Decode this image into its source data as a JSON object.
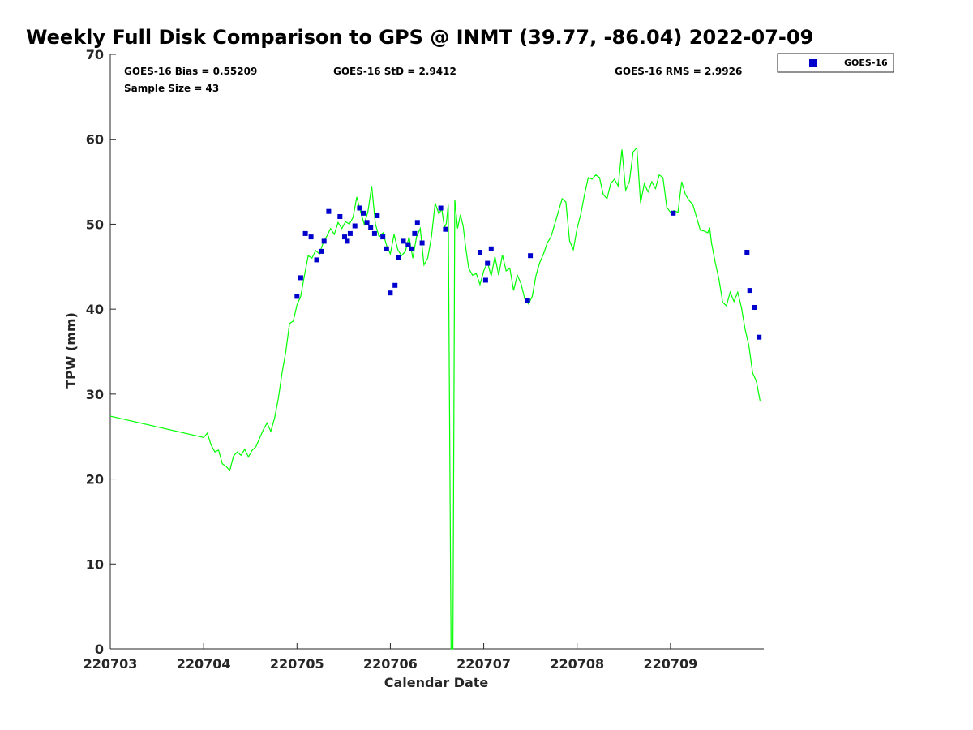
{
  "chart_data": {
    "type": "line+scatter",
    "title": "Weekly Full Disk Comparison to GPS @ INMT (39.77, -86.04) 2022-07-09",
    "xlabel": "Calendar Date",
    "ylabel": "TPW (mm)",
    "xlim": [
      0,
      7
    ],
    "ylim": [
      0,
      70
    ],
    "x_tick_values": [
      0,
      1,
      2,
      3,
      4,
      5,
      6
    ],
    "x_tick_labels": [
      "220703",
      "220704",
      "220705",
      "220706",
      "220707",
      "220708",
      "220709"
    ],
    "y_ticks": [
      0,
      10,
      20,
      30,
      40,
      50,
      60,
      70
    ],
    "stats": {
      "bias": "GOES-16 Bias = 0.55209",
      "std": "GOES-16 StD = 2.9412",
      "rms": "GOES-16 RMS = 2.9926",
      "sample": "Sample Size = 43"
    },
    "legend": {
      "label": "GOES-16",
      "position": "top-right (outside)"
    },
    "series": [
      {
        "name": "GPS",
        "kind": "line",
        "color": "#00ff00",
        "points": [
          [
            0.0,
            27.4
          ],
          [
            1.0,
            24.9
          ],
          [
            1.04,
            25.4
          ],
          [
            1.08,
            24.0
          ],
          [
            1.12,
            23.2
          ],
          [
            1.16,
            23.4
          ],
          [
            1.2,
            21.8
          ],
          [
            1.24,
            21.5
          ],
          [
            1.28,
            21.0
          ],
          [
            1.32,
            22.7
          ],
          [
            1.36,
            23.2
          ],
          [
            1.4,
            22.8
          ],
          [
            1.44,
            23.5
          ],
          [
            1.48,
            22.6
          ],
          [
            1.52,
            23.4
          ],
          [
            1.56,
            23.8
          ],
          [
            1.6,
            24.8
          ],
          [
            1.64,
            25.8
          ],
          [
            1.68,
            26.6
          ],
          [
            1.72,
            25.6
          ],
          [
            1.76,
            27.2
          ],
          [
            1.8,
            29.5
          ],
          [
            1.84,
            32.5
          ],
          [
            1.88,
            35.0
          ],
          [
            1.92,
            38.3
          ],
          [
            1.96,
            38.6
          ],
          [
            2.0,
            40.5
          ],
          [
            2.04,
            41.5
          ],
          [
            2.08,
            44.0
          ],
          [
            2.12,
            46.3
          ],
          [
            2.16,
            46.0
          ],
          [
            2.2,
            46.9
          ],
          [
            2.24,
            46.5
          ],
          [
            2.28,
            47.8
          ],
          [
            2.32,
            48.6
          ],
          [
            2.36,
            49.5
          ],
          [
            2.4,
            48.8
          ],
          [
            2.44,
            50.2
          ],
          [
            2.48,
            49.5
          ],
          [
            2.52,
            50.3
          ],
          [
            2.56,
            50.0
          ],
          [
            2.6,
            50.8
          ],
          [
            2.64,
            53.2
          ],
          [
            2.68,
            51.5
          ],
          [
            2.72,
            50.0
          ],
          [
            2.76,
            51.5
          ],
          [
            2.8,
            54.5
          ],
          [
            2.84,
            50.0
          ],
          [
            2.88,
            48.5
          ],
          [
            2.92,
            49.0
          ],
          [
            2.96,
            47.5
          ],
          [
            3.0,
            46.5
          ],
          [
            3.04,
            48.8
          ],
          [
            3.08,
            47.0
          ],
          [
            3.12,
            46.3
          ],
          [
            3.16,
            46.8
          ],
          [
            3.2,
            48.5
          ],
          [
            3.24,
            46.0
          ],
          [
            3.28,
            48.5
          ],
          [
            3.32,
            49.5
          ],
          [
            3.36,
            45.2
          ],
          [
            3.4,
            46.0
          ],
          [
            3.44,
            48.5
          ],
          [
            3.48,
            52.5
          ],
          [
            3.52,
            51.2
          ],
          [
            3.55,
            51.8
          ],
          [
            3.58,
            49.6
          ],
          [
            3.6,
            50.1
          ],
          [
            3.62,
            52.3
          ],
          [
            3.65,
            0.0
          ],
          [
            3.67,
            0.0
          ],
          [
            3.69,
            52.9
          ],
          [
            3.72,
            49.5
          ],
          [
            3.75,
            51.1
          ],
          [
            3.78,
            49.8
          ],
          [
            3.81,
            47.0
          ],
          [
            3.84,
            44.8
          ],
          [
            3.88,
            44.0
          ],
          [
            3.92,
            44.2
          ],
          [
            3.96,
            42.9
          ],
          [
            4.0,
            44.5
          ],
          [
            4.04,
            45.5
          ],
          [
            4.08,
            43.9
          ],
          [
            4.12,
            46.2
          ],
          [
            4.16,
            44.0
          ],
          [
            4.2,
            46.4
          ],
          [
            4.24,
            44.5
          ],
          [
            4.28,
            44.8
          ],
          [
            4.32,
            42.2
          ],
          [
            4.36,
            44.0
          ],
          [
            4.4,
            43.0
          ],
          [
            4.44,
            41.2
          ],
          [
            4.48,
            40.6
          ],
          [
            4.52,
            41.5
          ],
          [
            4.56,
            44.0
          ],
          [
            4.6,
            45.5
          ],
          [
            4.64,
            46.5
          ],
          [
            4.68,
            47.8
          ],
          [
            4.72,
            48.5
          ],
          [
            4.76,
            50.0
          ],
          [
            4.8,
            51.5
          ],
          [
            4.84,
            53.0
          ],
          [
            4.88,
            52.6
          ],
          [
            4.92,
            48.0
          ],
          [
            4.96,
            47.0
          ],
          [
            5.0,
            49.5
          ],
          [
            5.04,
            51.2
          ],
          [
            5.08,
            53.5
          ],
          [
            5.12,
            55.5
          ],
          [
            5.16,
            55.3
          ],
          [
            5.2,
            55.8
          ],
          [
            5.24,
            55.5
          ],
          [
            5.28,
            53.5
          ],
          [
            5.32,
            53.0
          ],
          [
            5.36,
            54.8
          ],
          [
            5.4,
            55.3
          ],
          [
            5.44,
            54.5
          ],
          [
            5.48,
            58.8
          ],
          [
            5.52,
            54.0
          ],
          [
            5.56,
            55.0
          ],
          [
            5.6,
            58.5
          ],
          [
            5.64,
            59.0
          ],
          [
            5.68,
            52.5
          ],
          [
            5.72,
            54.8
          ],
          [
            5.76,
            53.8
          ],
          [
            5.8,
            55.0
          ],
          [
            5.84,
            54.2
          ],
          [
            5.88,
            55.8
          ],
          [
            5.92,
            55.5
          ],
          [
            5.96,
            52.0
          ],
          [
            6.0,
            51.4
          ],
          [
            6.04,
            51.6
          ],
          [
            6.08,
            51.4
          ],
          [
            6.12,
            55.0
          ],
          [
            6.16,
            53.5
          ],
          [
            6.2,
            52.8
          ],
          [
            6.24,
            52.3
          ],
          [
            6.28,
            50.8
          ],
          [
            6.32,
            49.3
          ],
          [
            6.36,
            49.2
          ],
          [
            6.4,
            49.0
          ],
          [
            6.42,
            49.6
          ],
          [
            6.44,
            47.8
          ],
          [
            6.48,
            45.5
          ],
          [
            6.52,
            43.5
          ],
          [
            6.56,
            40.8
          ],
          [
            6.6,
            40.4
          ],
          [
            6.64,
            42.0
          ],
          [
            6.68,
            40.9
          ],
          [
            6.72,
            42.0
          ],
          [
            6.76,
            40.2
          ],
          [
            6.8,
            37.6
          ],
          [
            6.84,
            35.7
          ],
          [
            6.88,
            32.5
          ],
          [
            6.92,
            31.5
          ],
          [
            6.96,
            29.2
          ]
        ]
      },
      {
        "name": "GOES-16",
        "kind": "scatter",
        "color": "#0000cc",
        "points": [
          [
            2.0,
            41.5
          ],
          [
            2.04,
            43.7
          ],
          [
            2.09,
            48.9
          ],
          [
            2.15,
            48.5
          ],
          [
            2.21,
            45.8
          ],
          [
            2.26,
            46.8
          ],
          [
            2.29,
            48.0
          ],
          [
            2.34,
            51.5
          ],
          [
            2.46,
            50.9
          ],
          [
            2.51,
            48.5
          ],
          [
            2.54,
            48.0
          ],
          [
            2.57,
            48.9
          ],
          [
            2.62,
            49.8
          ],
          [
            2.67,
            51.9
          ],
          [
            2.71,
            51.3
          ],
          [
            2.75,
            50.2
          ],
          [
            2.79,
            49.6
          ],
          [
            2.83,
            48.9
          ],
          [
            2.86,
            51.0
          ],
          [
            2.92,
            48.5
          ],
          [
            2.96,
            47.1
          ],
          [
            3.0,
            41.9
          ],
          [
            3.05,
            42.8
          ],
          [
            3.09,
            46.1
          ],
          [
            3.14,
            48.0
          ],
          [
            3.19,
            47.6
          ],
          [
            3.23,
            47.1
          ],
          [
            3.26,
            48.9
          ],
          [
            3.29,
            50.2
          ],
          [
            3.34,
            47.8
          ],
          [
            3.54,
            51.9
          ],
          [
            3.59,
            49.4
          ],
          [
            3.96,
            46.7
          ],
          [
            4.02,
            43.4
          ],
          [
            4.04,
            45.4
          ],
          [
            4.08,
            47.1
          ],
          [
            4.47,
            41.0
          ],
          [
            4.5,
            46.3
          ],
          [
            6.03,
            51.3
          ],
          [
            6.82,
            46.7
          ],
          [
            6.85,
            42.2
          ],
          [
            6.9,
            40.2
          ],
          [
            6.95,
            36.7
          ]
        ]
      }
    ]
  }
}
